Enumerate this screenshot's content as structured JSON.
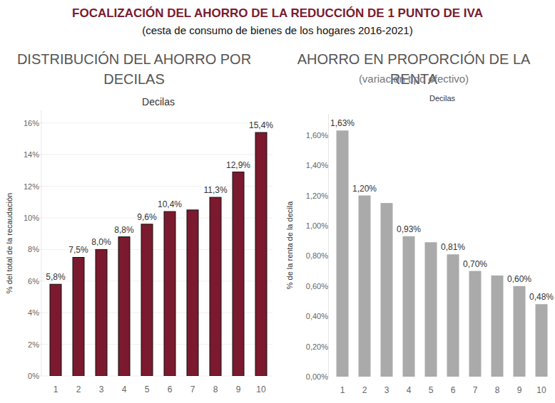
{
  "title": "FOCALIZACIÓN DEL AHORRO DE LA REDUCCIÓN DE 1 PUNTO DE IVA",
  "subtitle": "(cesta de consumo de bienes de los hogares 2016-2021)",
  "chart_data": [
    {
      "type": "bar",
      "title": "DISTRIBUCIÓN DEL AHORRO POR DECILAS",
      "x_label": "Decilas",
      "y_label": "% del total de la recaudación",
      "categories": [
        "1",
        "2",
        "3",
        "4",
        "5",
        "6",
        "7",
        "8",
        "9",
        "10"
      ],
      "values": [
        5.8,
        7.5,
        8.0,
        8.8,
        9.6,
        10.4,
        10.5,
        11.3,
        12.9,
        15.4
      ],
      "value_labels": [
        "5,8%",
        "7,5%",
        "8,0%",
        "8,8%",
        "9,6%",
        "10,4%",
        null,
        "11,3%",
        "12,9%",
        "15,4%"
      ],
      "data_labels": true,
      "color": "#7b1a2e",
      "ylim": [
        0,
        16.8
      ],
      "yticks": [
        {
          "value": 0,
          "label": "0%"
        },
        {
          "value": 2,
          "label": "2%"
        },
        {
          "value": 4,
          "label": "4%"
        },
        {
          "value": 6,
          "label": "6%"
        },
        {
          "value": 8,
          "label": "8%"
        },
        {
          "value": 10,
          "label": "10%"
        },
        {
          "value": 12,
          "label": "12%"
        },
        {
          "value": 14,
          "label": "14%"
        },
        {
          "value": 16,
          "label": "16%"
        }
      ],
      "grid": true
    },
    {
      "type": "bar",
      "title": "AHORRO EN PROPORCIÓN DE LA RENTA",
      "subtitle": "(variación tipo efectivo)",
      "x_label": "Decilas",
      "y_label": "% de la renta de la decila",
      "categories": [
        "1",
        "2",
        "3",
        "4",
        "5",
        "6",
        "7",
        "8",
        "9",
        "10"
      ],
      "values": [
        1.63,
        1.2,
        1.15,
        0.93,
        0.89,
        0.81,
        0.7,
        0.67,
        0.6,
        0.48
      ],
      "value_labels": [
        "1,63%",
        "1,20%",
        null,
        "0,93%",
        null,
        "0,81%",
        "0,70%",
        null,
        "0,60%",
        "0,48%"
      ],
      "data_labels": true,
      "color": "#aaaaaa",
      "ylim": [
        0,
        1.74
      ],
      "yticks": [
        {
          "value": 0,
          "label": "0,00%"
        },
        {
          "value": 0.2,
          "label": "0,20%"
        },
        {
          "value": 0.4,
          "label": "0,40%"
        },
        {
          "value": 0.6,
          "label": "0,60%"
        },
        {
          "value": 0.8,
          "label": "0,80%"
        },
        {
          "value": 1.0,
          "label": "1,00%"
        },
        {
          "value": 1.2,
          "label": "1,20%"
        },
        {
          "value": 1.4,
          "label": "1,40%"
        },
        {
          "value": 1.6,
          "label": "1,60%"
        }
      ],
      "grid": false
    }
  ]
}
